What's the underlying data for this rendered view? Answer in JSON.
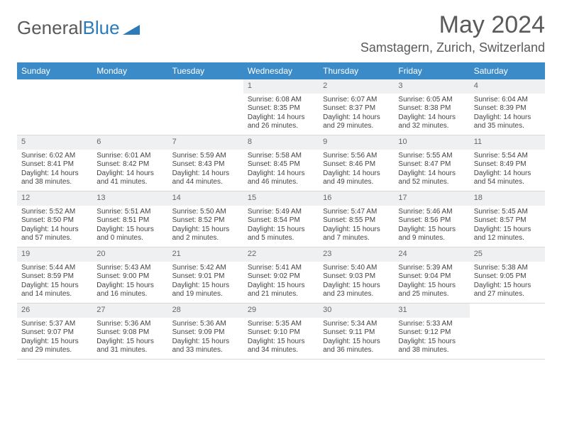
{
  "brand": {
    "part1": "General",
    "part2": "Blue",
    "icon_color": "#2b7bbb"
  },
  "title": "May 2024",
  "location": "Samstagern, Zurich, Switzerland",
  "colors": {
    "header_bg": "#3b8bc8",
    "header_text": "#ffffff",
    "daynum_bg": "#eef0f2",
    "text": "#444444",
    "title_color": "#5a5a5a"
  },
  "day_headers": [
    "Sunday",
    "Monday",
    "Tuesday",
    "Wednesday",
    "Thursday",
    "Friday",
    "Saturday"
  ],
  "weeks": [
    [
      {
        "n": "",
        "sr": "",
        "ss": "",
        "dl": ""
      },
      {
        "n": "",
        "sr": "",
        "ss": "",
        "dl": ""
      },
      {
        "n": "",
        "sr": "",
        "ss": "",
        "dl": ""
      },
      {
        "n": "1",
        "sr": "6:08 AM",
        "ss": "8:35 PM",
        "dl": "14 hours and 26 minutes."
      },
      {
        "n": "2",
        "sr": "6:07 AM",
        "ss": "8:37 PM",
        "dl": "14 hours and 29 minutes."
      },
      {
        "n": "3",
        "sr": "6:05 AM",
        "ss": "8:38 PM",
        "dl": "14 hours and 32 minutes."
      },
      {
        "n": "4",
        "sr": "6:04 AM",
        "ss": "8:39 PM",
        "dl": "14 hours and 35 minutes."
      }
    ],
    [
      {
        "n": "5",
        "sr": "6:02 AM",
        "ss": "8:41 PM",
        "dl": "14 hours and 38 minutes."
      },
      {
        "n": "6",
        "sr": "6:01 AM",
        "ss": "8:42 PM",
        "dl": "14 hours and 41 minutes."
      },
      {
        "n": "7",
        "sr": "5:59 AM",
        "ss": "8:43 PM",
        "dl": "14 hours and 44 minutes."
      },
      {
        "n": "8",
        "sr": "5:58 AM",
        "ss": "8:45 PM",
        "dl": "14 hours and 46 minutes."
      },
      {
        "n": "9",
        "sr": "5:56 AM",
        "ss": "8:46 PM",
        "dl": "14 hours and 49 minutes."
      },
      {
        "n": "10",
        "sr": "5:55 AM",
        "ss": "8:47 PM",
        "dl": "14 hours and 52 minutes."
      },
      {
        "n": "11",
        "sr": "5:54 AM",
        "ss": "8:49 PM",
        "dl": "14 hours and 54 minutes."
      }
    ],
    [
      {
        "n": "12",
        "sr": "5:52 AM",
        "ss": "8:50 PM",
        "dl": "14 hours and 57 minutes."
      },
      {
        "n": "13",
        "sr": "5:51 AM",
        "ss": "8:51 PM",
        "dl": "15 hours and 0 minutes."
      },
      {
        "n": "14",
        "sr": "5:50 AM",
        "ss": "8:52 PM",
        "dl": "15 hours and 2 minutes."
      },
      {
        "n": "15",
        "sr": "5:49 AM",
        "ss": "8:54 PM",
        "dl": "15 hours and 5 minutes."
      },
      {
        "n": "16",
        "sr": "5:47 AM",
        "ss": "8:55 PM",
        "dl": "15 hours and 7 minutes."
      },
      {
        "n": "17",
        "sr": "5:46 AM",
        "ss": "8:56 PM",
        "dl": "15 hours and 9 minutes."
      },
      {
        "n": "18",
        "sr": "5:45 AM",
        "ss": "8:57 PM",
        "dl": "15 hours and 12 minutes."
      }
    ],
    [
      {
        "n": "19",
        "sr": "5:44 AM",
        "ss": "8:59 PM",
        "dl": "15 hours and 14 minutes."
      },
      {
        "n": "20",
        "sr": "5:43 AM",
        "ss": "9:00 PM",
        "dl": "15 hours and 16 minutes."
      },
      {
        "n": "21",
        "sr": "5:42 AM",
        "ss": "9:01 PM",
        "dl": "15 hours and 19 minutes."
      },
      {
        "n": "22",
        "sr": "5:41 AM",
        "ss": "9:02 PM",
        "dl": "15 hours and 21 minutes."
      },
      {
        "n": "23",
        "sr": "5:40 AM",
        "ss": "9:03 PM",
        "dl": "15 hours and 23 minutes."
      },
      {
        "n": "24",
        "sr": "5:39 AM",
        "ss": "9:04 PM",
        "dl": "15 hours and 25 minutes."
      },
      {
        "n": "25",
        "sr": "5:38 AM",
        "ss": "9:05 PM",
        "dl": "15 hours and 27 minutes."
      }
    ],
    [
      {
        "n": "26",
        "sr": "5:37 AM",
        "ss": "9:07 PM",
        "dl": "15 hours and 29 minutes."
      },
      {
        "n": "27",
        "sr": "5:36 AM",
        "ss": "9:08 PM",
        "dl": "15 hours and 31 minutes."
      },
      {
        "n": "28",
        "sr": "5:36 AM",
        "ss": "9:09 PM",
        "dl": "15 hours and 33 minutes."
      },
      {
        "n": "29",
        "sr": "5:35 AM",
        "ss": "9:10 PM",
        "dl": "15 hours and 34 minutes."
      },
      {
        "n": "30",
        "sr": "5:34 AM",
        "ss": "9:11 PM",
        "dl": "15 hours and 36 minutes."
      },
      {
        "n": "31",
        "sr": "5:33 AM",
        "ss": "9:12 PM",
        "dl": "15 hours and 38 minutes."
      },
      {
        "n": "",
        "sr": "",
        "ss": "",
        "dl": ""
      }
    ]
  ],
  "labels": {
    "sunrise": "Sunrise:",
    "sunset": "Sunset:",
    "daylight": "Daylight:"
  }
}
